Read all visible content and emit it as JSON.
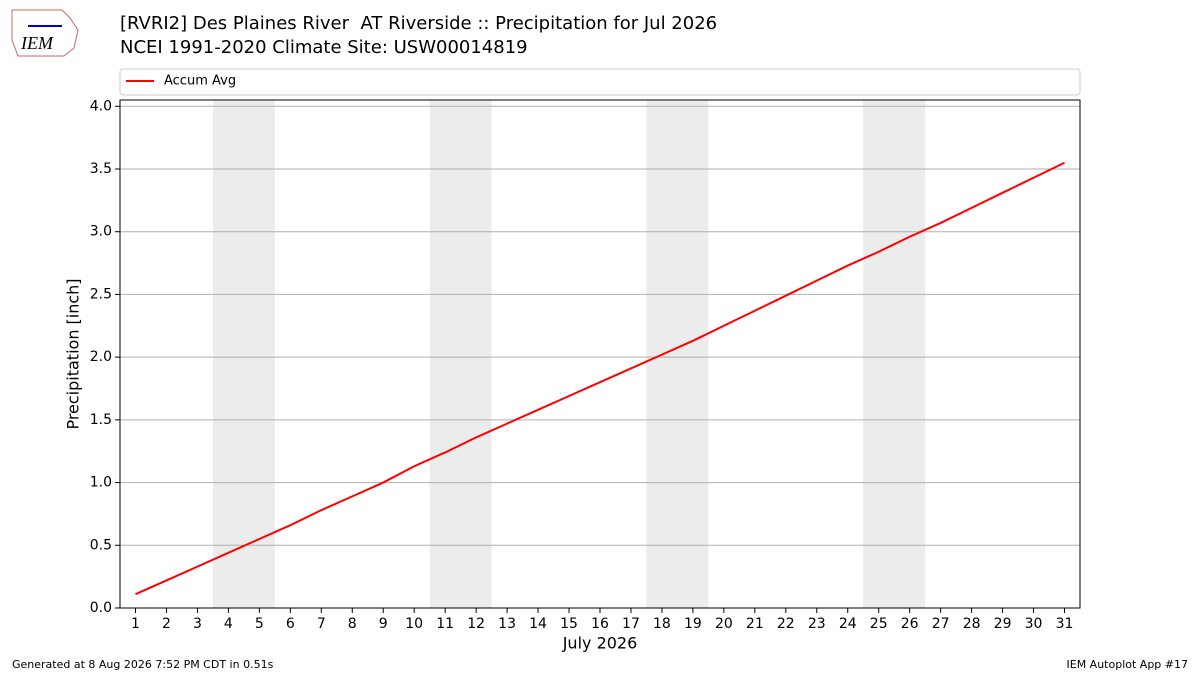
{
  "logo": "IEM",
  "footer": {
    "left": "Generated at 8 Aug 2026 7:52 PM CDT in 0.51s",
    "right": "IEM Autoplot App #17"
  },
  "chart_data": {
    "type": "line",
    "title": "[RVRI2] Des Plaines River  AT Riverside :: Precipitation for Jul 2026",
    "subtitle": "NCEI 1991-2020 Climate Site: USW00014819",
    "x_label": "July 2026",
    "y_label": "Precipitation [inch]",
    "x": [
      1,
      2,
      3,
      4,
      5,
      6,
      7,
      8,
      9,
      10,
      11,
      12,
      13,
      14,
      15,
      16,
      17,
      18,
      19,
      20,
      21,
      22,
      23,
      24,
      25,
      26,
      27,
      28,
      29,
      30,
      31
    ],
    "series": [
      {
        "name": "Accum Avg",
        "color": "#ff0000",
        "values": [
          0.11,
          0.22,
          0.33,
          0.44,
          0.55,
          0.66,
          0.78,
          0.89,
          1.0,
          1.13,
          1.24,
          1.36,
          1.47,
          1.58,
          1.69,
          1.8,
          1.91,
          2.02,
          2.13,
          2.25,
          2.37,
          2.49,
          2.61,
          2.73,
          2.84,
          2.96,
          3.07,
          3.19,
          3.31,
          3.43,
          3.55
        ]
      }
    ],
    "xlim": [
      0.5,
      31.5
    ],
    "ylim": [
      0,
      4.05
    ],
    "xticks": [
      1,
      2,
      3,
      4,
      5,
      6,
      7,
      8,
      9,
      10,
      11,
      12,
      13,
      14,
      15,
      16,
      17,
      18,
      19,
      20,
      21,
      22,
      23,
      24,
      25,
      26,
      27,
      28,
      29,
      30,
      31
    ],
    "yticks": [
      {
        "value": 0,
        "label": "0.0"
      },
      0.5,
      {
        "value": 1,
        "label": "1.0"
      },
      1.5,
      {
        "value": 2,
        "label": "2.0"
      },
      2.5,
      {
        "value": 3,
        "label": "3.0"
      },
      3.5,
      {
        "value": 4,
        "label": "4.0"
      }
    ],
    "weekend_spans": [
      [
        3.5,
        5.5
      ],
      [
        10.5,
        12.5
      ],
      [
        17.5,
        19.5
      ],
      [
        24.5,
        26.5
      ]
    ],
    "span_color": "#ececec",
    "grid": true,
    "legend": "top"
  }
}
